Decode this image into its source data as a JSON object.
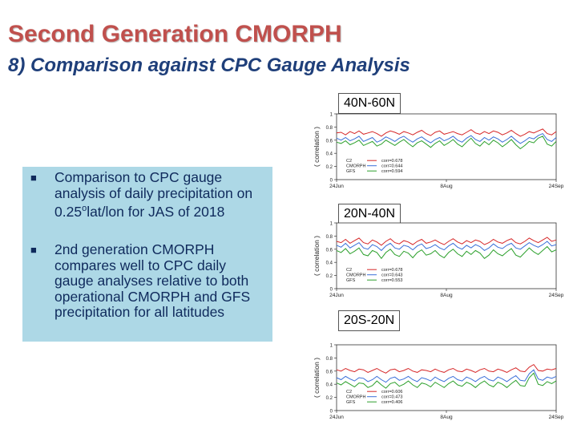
{
  "slide": {
    "title": "Second Generation CMORPH",
    "subtitle": "8) Comparison against CPC Gauge Analysis",
    "bullets": [
      {
        "pre": "Comparison to CPC gauge analysis of daily precipitation on 0.25",
        "sup": "o",
        "post": "lat/lon for JAS of 2018"
      },
      {
        "pre": "2nd generation CMORPH compares well to CPC daily gauge analyses relative to both operational CMORPH and GFS precipitation for all latitudes",
        "sup": "",
        "post": ""
      }
    ]
  },
  "colors": {
    "title": "#c0504d",
    "subtitle": "#1f3f7a",
    "textbox": "#add8e6",
    "c2": "#d62728",
    "cmorph": "#3a6fd8",
    "gfs": "#2ca02c"
  },
  "chart_data": [
    {
      "type": "line",
      "title": "40N-60N",
      "ylabel": "( correlation )",
      "ylim": [
        0,
        1
      ],
      "yticks": [
        "0",
        "0.2",
        "0.4",
        "0.6",
        "0.8",
        "1"
      ],
      "xticks": [
        "24Jun",
        "8Aug",
        "24Sep"
      ],
      "legend_placement": "bottom-left",
      "series": [
        {
          "name": "C2",
          "stat": "corr=0.678",
          "color": "#d62728",
          "values": [
            0.71,
            0.72,
            0.68,
            0.73,
            0.7,
            0.74,
            0.69,
            0.71,
            0.73,
            0.7,
            0.66,
            0.71,
            0.74,
            0.72,
            0.69,
            0.73,
            0.71,
            0.68,
            0.72,
            0.75,
            0.7,
            0.67,
            0.72,
            0.74,
            0.69,
            0.71,
            0.73,
            0.7,
            0.68,
            0.72,
            0.76,
            0.71,
            0.69,
            0.73,
            0.7,
            0.74,
            0.72,
            0.68,
            0.71,
            0.75,
            0.7,
            0.66,
            0.69,
            0.73,
            0.71,
            0.74,
            0.77,
            0.7,
            0.68,
            0.73
          ]
        },
        {
          "name": "CMORPH",
          "stat": "corr=0.644",
          "color": "#3a6fd8",
          "values": [
            0.63,
            0.6,
            0.64,
            0.59,
            0.62,
            0.66,
            0.58,
            0.61,
            0.64,
            0.57,
            0.6,
            0.65,
            0.62,
            0.58,
            0.63,
            0.66,
            0.61,
            0.57,
            0.62,
            0.65,
            0.6,
            0.56,
            0.61,
            0.64,
            0.59,
            0.62,
            0.66,
            0.6,
            0.57,
            0.63,
            0.67,
            0.61,
            0.58,
            0.64,
            0.6,
            0.65,
            0.62,
            0.57,
            0.61,
            0.66,
            0.6,
            0.55,
            0.59,
            0.64,
            0.62,
            0.67,
            0.7,
            0.61,
            0.58,
            0.64
          ]
        },
        {
          "name": "GFS",
          "stat": "corr=0.594",
          "color": "#2ca02c",
          "values": [
            0.57,
            0.55,
            0.59,
            0.53,
            0.56,
            0.6,
            0.52,
            0.55,
            0.58,
            0.51,
            0.54,
            0.6,
            0.56,
            0.52,
            0.57,
            0.61,
            0.55,
            0.5,
            0.56,
            0.59,
            0.54,
            0.49,
            0.55,
            0.59,
            0.52,
            0.56,
            0.61,
            0.54,
            0.5,
            0.57,
            0.63,
            0.55,
            0.51,
            0.58,
            0.53,
            0.6,
            0.56,
            0.5,
            0.55,
            0.61,
            0.53,
            0.47,
            0.52,
            0.58,
            0.56,
            0.63,
            0.66,
            0.54,
            0.51,
            0.58
          ]
        }
      ]
    },
    {
      "type": "line",
      "title": "20N-40N",
      "ylabel": "( correlation )",
      "ylim": [
        0,
        1
      ],
      "yticks": [
        "0",
        "0.2",
        "0.4",
        "0.6",
        "0.8",
        "1"
      ],
      "xticks": [
        "24Jun",
        "8Aug",
        "24Sep"
      ],
      "legend_placement": "bottom-left",
      "series": [
        {
          "name": "C2",
          "stat": "corr=0.678",
          "color": "#d62728",
          "values": [
            0.72,
            0.7,
            0.75,
            0.69,
            0.73,
            0.77,
            0.7,
            0.68,
            0.74,
            0.71,
            0.66,
            0.72,
            0.76,
            0.7,
            0.68,
            0.73,
            0.71,
            0.67,
            0.72,
            0.75,
            0.69,
            0.71,
            0.74,
            0.7,
            0.67,
            0.72,
            0.76,
            0.71,
            0.68,
            0.73,
            0.7,
            0.74,
            0.72,
            0.67,
            0.7,
            0.75,
            0.71,
            0.69,
            0.73,
            0.76,
            0.7,
            0.68,
            0.72,
            0.77,
            0.73,
            0.7,
            0.74,
            0.78,
            0.72,
            0.74
          ]
        },
        {
          "name": "CMORPH",
          "stat": "corr=0.643",
          "color": "#3a6fd8",
          "values": [
            0.66,
            0.63,
            0.69,
            0.62,
            0.66,
            0.7,
            0.62,
            0.6,
            0.67,
            0.64,
            0.58,
            0.65,
            0.69,
            0.62,
            0.6,
            0.66,
            0.64,
            0.59,
            0.65,
            0.68,
            0.61,
            0.63,
            0.67,
            0.62,
            0.59,
            0.65,
            0.69,
            0.63,
            0.6,
            0.66,
            0.62,
            0.67,
            0.64,
            0.58,
            0.62,
            0.68,
            0.63,
            0.61,
            0.66,
            0.69,
            0.62,
            0.6,
            0.65,
            0.7,
            0.66,
            0.63,
            0.67,
            0.72,
            0.65,
            0.67
          ]
        },
        {
          "name": "GFS",
          "stat": "corr=0.553",
          "color": "#2ca02c",
          "values": [
            0.58,
            0.55,
            0.61,
            0.53,
            0.57,
            0.62,
            0.52,
            0.5,
            0.58,
            0.55,
            0.46,
            0.55,
            0.6,
            0.52,
            0.49,
            0.57,
            0.54,
            0.47,
            0.55,
            0.59,
            0.51,
            0.53,
            0.58,
            0.51,
            0.47,
            0.55,
            0.6,
            0.53,
            0.49,
            0.57,
            0.52,
            0.58,
            0.54,
            0.46,
            0.51,
            0.59,
            0.53,
            0.5,
            0.56,
            0.61,
            0.51,
            0.48,
            0.55,
            0.62,
            0.56,
            0.52,
            0.58,
            0.64,
            0.56,
            0.59
          ]
        }
      ]
    },
    {
      "type": "line",
      "title": "20S-20N",
      "ylabel": "( correlation )",
      "ylim": [
        0,
        1
      ],
      "yticks": [
        "0",
        "0.2",
        "0.4",
        "0.6",
        "0.8",
        "1"
      ],
      "xticks": [
        "24Jun",
        "8Aug",
        "24Sep"
      ],
      "legend_placement": "bottom-left",
      "series": [
        {
          "name": "C2",
          "stat": "corr=0.606",
          "color": "#d62728",
          "values": [
            0.62,
            0.6,
            0.64,
            0.61,
            0.59,
            0.63,
            0.62,
            0.58,
            0.61,
            0.64,
            0.6,
            0.57,
            0.62,
            0.63,
            0.59,
            0.61,
            0.64,
            0.6,
            0.58,
            0.62,
            0.61,
            0.59,
            0.63,
            0.6,
            0.58,
            0.62,
            0.64,
            0.6,
            0.59,
            0.63,
            0.61,
            0.58,
            0.62,
            0.64,
            0.6,
            0.59,
            0.63,
            0.61,
            0.58,
            0.62,
            0.65,
            0.6,
            0.59,
            0.66,
            0.7,
            0.61,
            0.6,
            0.63,
            0.62,
            0.64
          ]
        },
        {
          "name": "CMORPH",
          "stat": "corr=0.473",
          "color": "#3a6fd8",
          "values": [
            0.5,
            0.47,
            0.52,
            0.48,
            0.45,
            0.5,
            0.49,
            0.44,
            0.47,
            0.52,
            0.47,
            0.43,
            0.49,
            0.51,
            0.46,
            0.48,
            0.52,
            0.47,
            0.44,
            0.5,
            0.48,
            0.45,
            0.51,
            0.47,
            0.44,
            0.49,
            0.52,
            0.47,
            0.45,
            0.51,
            0.48,
            0.44,
            0.49,
            0.52,
            0.47,
            0.45,
            0.51,
            0.48,
            0.44,
            0.49,
            0.53,
            0.46,
            0.45,
            0.56,
            0.62,
            0.48,
            0.46,
            0.51,
            0.49,
            0.52
          ]
        },
        {
          "name": "GFS",
          "stat": "corr=0.406",
          "color": "#2ca02c",
          "values": [
            0.42,
            0.39,
            0.44,
            0.4,
            0.36,
            0.42,
            0.41,
            0.35,
            0.38,
            0.45,
            0.39,
            0.34,
            0.41,
            0.43,
            0.37,
            0.4,
            0.45,
            0.39,
            0.35,
            0.42,
            0.4,
            0.36,
            0.43,
            0.39,
            0.35,
            0.41,
            0.45,
            0.39,
            0.37,
            0.43,
            0.4,
            0.35,
            0.41,
            0.45,
            0.39,
            0.36,
            0.43,
            0.4,
            0.35,
            0.41,
            0.46,
            0.38,
            0.37,
            0.5,
            0.57,
            0.4,
            0.38,
            0.44,
            0.41,
            0.45
          ]
        }
      ]
    }
  ]
}
